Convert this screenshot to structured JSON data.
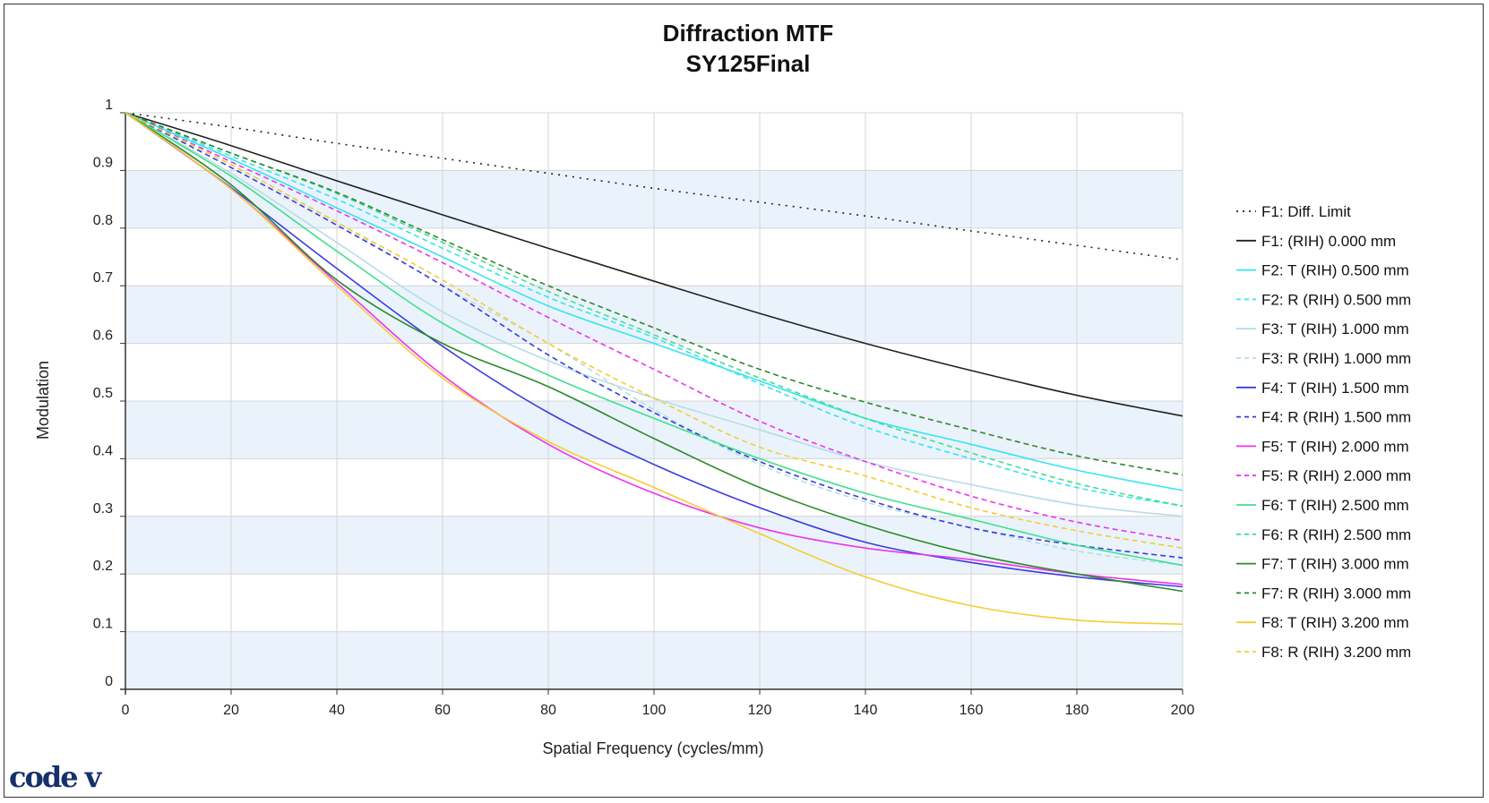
{
  "logo": "code v",
  "colors": {
    "band": "#eaf3fb",
    "grid": "#d4d4d4",
    "axis": "#333333"
  },
  "chart_data": {
    "type": "line",
    "title": "Diffraction MTF",
    "subtitle": "SY125Final",
    "xlabel": "Spatial Frequency (cycles/mm)",
    "ylabel": "Modulation",
    "xlim": [
      0,
      200
    ],
    "ylim": [
      0,
      1
    ],
    "xticks": [
      "0",
      "20",
      "40",
      "60",
      "80",
      "100",
      "120",
      "140",
      "160",
      "180",
      "200"
    ],
    "yticks": [
      "0",
      "0.1",
      "0.2",
      "0.3",
      "0.4",
      "0.5",
      "0.6",
      "0.7",
      "0.8",
      "0.9",
      "1"
    ],
    "grid": true,
    "legend_position": "right",
    "x": [
      0,
      20,
      40,
      60,
      80,
      100,
      120,
      140,
      160,
      180,
      200
    ],
    "series": [
      {
        "name": "F1: Diff. Limit",
        "color": "#222222",
        "dash": "dot",
        "values": [
          1.0,
          0.975,
          0.947,
          0.921,
          0.895,
          0.869,
          0.845,
          0.821,
          0.795,
          0.77,
          0.745
        ]
      },
      {
        "name": "F1: (RIH) 0.000 mm",
        "color": "#222222",
        "dash": "solid",
        "values": [
          1.0,
          0.943,
          0.882,
          0.823,
          0.765,
          0.708,
          0.652,
          0.6,
          0.553,
          0.51,
          0.474
        ]
      },
      {
        "name": "F2: T (RIH) 0.500 mm",
        "color": "#33e5f0",
        "dash": "solid",
        "values": [
          1.0,
          0.92,
          0.835,
          0.75,
          0.665,
          0.6,
          0.535,
          0.47,
          0.425,
          0.38,
          0.345
        ]
      },
      {
        "name": "F2: R (RIH) 0.500 mm",
        "color": "#33e5f0",
        "dash": "dash",
        "values": [
          1.0,
          0.925,
          0.85,
          0.765,
          0.68,
          0.61,
          0.53,
          0.455,
          0.4,
          0.35,
          0.318
        ]
      },
      {
        "name": "F3: T (RIH) 1.000 mm",
        "color": "#b5dde6",
        "dash": "solid",
        "values": [
          1.0,
          0.895,
          0.775,
          0.655,
          0.57,
          0.505,
          0.45,
          0.395,
          0.355,
          0.32,
          0.3
        ]
      },
      {
        "name": "F3: R (RIH) 1.000 mm",
        "color": "#b5dde6",
        "dash": "dash",
        "values": [
          1.0,
          0.91,
          0.81,
          0.7,
          0.6,
          0.485,
          0.39,
          0.325,
          0.28,
          0.24,
          0.215
        ]
      },
      {
        "name": "F4: T (RIH) 1.500 mm",
        "color": "#3b3be0",
        "dash": "solid",
        "values": [
          1.0,
          0.87,
          0.73,
          0.595,
          0.48,
          0.39,
          0.315,
          0.255,
          0.22,
          0.195,
          0.178
        ]
      },
      {
        "name": "F4: R (RIH) 1.500 mm",
        "color": "#3b3be0",
        "dash": "dash",
        "values": [
          1.0,
          0.905,
          0.805,
          0.7,
          0.58,
          0.48,
          0.395,
          0.33,
          0.28,
          0.25,
          0.228
        ]
      },
      {
        "name": "F5: T (RIH) 2.000 mm",
        "color": "#ee33ee",
        "dash": "solid",
        "values": [
          1.0,
          0.868,
          0.705,
          0.545,
          0.425,
          0.34,
          0.28,
          0.245,
          0.225,
          0.2,
          0.182
        ]
      },
      {
        "name": "F5: R (RIH) 2.000 mm",
        "color": "#ee33ee",
        "dash": "dash",
        "values": [
          1.0,
          0.915,
          0.83,
          0.74,
          0.645,
          0.555,
          0.465,
          0.395,
          0.335,
          0.29,
          0.258
        ]
      },
      {
        "name": "F6: T (RIH) 2.500 mm",
        "color": "#3fe08e",
        "dash": "solid",
        "values": [
          1.0,
          0.89,
          0.76,
          0.635,
          0.545,
          0.47,
          0.4,
          0.34,
          0.295,
          0.25,
          0.215
        ]
      },
      {
        "name": "F6: R (RIH) 2.500 mm",
        "color": "#3fe08e",
        "dash": "dash",
        "values": [
          1.0,
          0.93,
          0.86,
          0.775,
          0.69,
          0.615,
          0.54,
          0.47,
          0.41,
          0.357,
          0.318
        ]
      },
      {
        "name": "F7: T (RIH) 3.000 mm",
        "color": "#2a8a2a",
        "dash": "solid",
        "values": [
          1.0,
          0.875,
          0.71,
          0.6,
          0.525,
          0.435,
          0.35,
          0.285,
          0.235,
          0.2,
          0.17
        ]
      },
      {
        "name": "F7: R (RIH) 3.000 mm",
        "color": "#2a8a2a",
        "dash": "dash",
        "values": [
          1.0,
          0.93,
          0.862,
          0.78,
          0.7,
          0.627,
          0.555,
          0.498,
          0.45,
          0.405,
          0.372
        ]
      },
      {
        "name": "F8: T (RIH) 3.200 mm",
        "color": "#f5cc33",
        "dash": "solid",
        "values": [
          1.0,
          0.868,
          0.7,
          0.54,
          0.43,
          0.35,
          0.27,
          0.195,
          0.145,
          0.12,
          0.113
        ]
      },
      {
        "name": "F8: R (RIH) 3.200 mm",
        "color": "#f5cc33",
        "dash": "dash",
        "values": [
          1.0,
          0.91,
          0.81,
          0.71,
          0.6,
          0.505,
          0.42,
          0.37,
          0.315,
          0.275,
          0.245
        ]
      }
    ]
  }
}
